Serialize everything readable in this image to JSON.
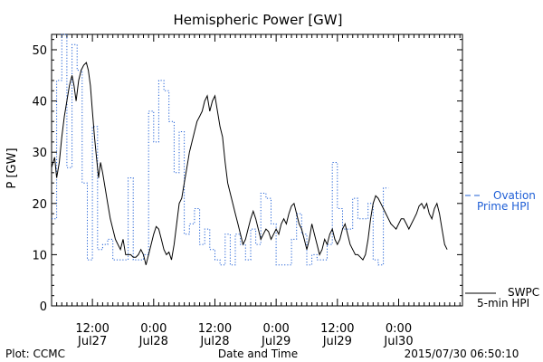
{
  "chart_data": {
    "type": "line",
    "title": "Hemispheric Power [GW]",
    "ylabel": "P [GW]",
    "xlabel": "Date and Time",
    "ylim": [
      0,
      53
    ],
    "yticks": [
      0,
      10,
      20,
      30,
      40,
      50
    ],
    "xlim_hours": [
      0,
      80.5
    ],
    "xtick_labels": [
      {
        "h": 8,
        "time": "12:00",
        "date": "Jul27"
      },
      {
        "h": 20,
        "time": "0:00",
        "date": "Jul28"
      },
      {
        "h": 32,
        "time": "12:00",
        "date": "Jul28"
      },
      {
        "h": 44,
        "time": "0:00",
        "date": "Jul29"
      },
      {
        "h": 56,
        "time": "12:00",
        "date": "Jul29"
      },
      {
        "h": 68,
        "time": "0:00",
        "date": "Jul30"
      }
    ],
    "footer_left": "Plot: CCMC",
    "footer_right": "2015/07/30 06:50:10",
    "colors": {
      "swpc": "#000000",
      "ovation": "#1f5fd6"
    },
    "series": [
      {
        "name": "SWPC 5-min HPI",
        "legend_lines": [
          "SWPC",
          "5-min HPI"
        ],
        "style": "solid",
        "color": "#000000",
        "points": [
          [
            0,
            27
          ],
          [
            0.6,
            29
          ],
          [
            1,
            25
          ],
          [
            1.5,
            28
          ],
          [
            2,
            33
          ],
          [
            2.5,
            37
          ],
          [
            3,
            40
          ],
          [
            3.5,
            43
          ],
          [
            4,
            45
          ],
          [
            4.4,
            43
          ],
          [
            4.8,
            40
          ],
          [
            5.3,
            44
          ],
          [
            5.8,
            46
          ],
          [
            6.3,
            47
          ],
          [
            6.8,
            47.5
          ],
          [
            7.2,
            46
          ],
          [
            7.6,
            43
          ],
          [
            8,
            38
          ],
          [
            8.4,
            33
          ],
          [
            8.8,
            29
          ],
          [
            9.2,
            25
          ],
          [
            9.6,
            28
          ],
          [
            10,
            26
          ],
          [
            10.5,
            23
          ],
          [
            11,
            20
          ],
          [
            11.5,
            17
          ],
          [
            12,
            15
          ],
          [
            12.5,
            13
          ],
          [
            13,
            12
          ],
          [
            13.5,
            11
          ],
          [
            14,
            13
          ],
          [
            14.5,
            10
          ],
          [
            15,
            10
          ],
          [
            15.5,
            10
          ],
          [
            16,
            9.5
          ],
          [
            16.5,
            9.5
          ],
          [
            17,
            10
          ],
          [
            17.5,
            11
          ],
          [
            18,
            10
          ],
          [
            18.5,
            8
          ],
          [
            19,
            10
          ],
          [
            19.5,
            12
          ],
          [
            20,
            14
          ],
          [
            20.5,
            15.5
          ],
          [
            21,
            15
          ],
          [
            21.5,
            13
          ],
          [
            22,
            11
          ],
          [
            22.5,
            10
          ],
          [
            23,
            10.5
          ],
          [
            23.5,
            9
          ],
          [
            24,
            12
          ],
          [
            24.5,
            16
          ],
          [
            25,
            20
          ],
          [
            25.5,
            21
          ],
          [
            26,
            24
          ],
          [
            26.5,
            27
          ],
          [
            27,
            30
          ],
          [
            27.5,
            32
          ],
          [
            28,
            34
          ],
          [
            28.5,
            36
          ],
          [
            29,
            37
          ],
          [
            29.5,
            38
          ],
          [
            30,
            40
          ],
          [
            30.5,
            41
          ],
          [
            31,
            38
          ],
          [
            31.5,
            40
          ],
          [
            32,
            41
          ],
          [
            32.5,
            38
          ],
          [
            33,
            35
          ],
          [
            33.5,
            33
          ],
          [
            34,
            28
          ],
          [
            34.5,
            24
          ],
          [
            35,
            22
          ],
          [
            35.5,
            20
          ],
          [
            36,
            18
          ],
          [
            36.5,
            16
          ],
          [
            37,
            14
          ],
          [
            37.5,
            12
          ],
          [
            38,
            13
          ],
          [
            38.5,
            15
          ],
          [
            39,
            17
          ],
          [
            39.5,
            18.5
          ],
          [
            40,
            17
          ],
          [
            40.5,
            15
          ],
          [
            41,
            13
          ],
          [
            41.5,
            14
          ],
          [
            42,
            15
          ],
          [
            42.5,
            14.5
          ],
          [
            43,
            13
          ],
          [
            43.5,
            14
          ],
          [
            44,
            15
          ],
          [
            44.5,
            14
          ],
          [
            45,
            16
          ],
          [
            45.5,
            17
          ],
          [
            46,
            16
          ],
          [
            46.5,
            18
          ],
          [
            47,
            19.5
          ],
          [
            47.5,
            20
          ],
          [
            48,
            18
          ],
          [
            48.5,
            16
          ],
          [
            49,
            15
          ],
          [
            49.5,
            13
          ],
          [
            50,
            11
          ],
          [
            50.5,
            13
          ],
          [
            51,
            16
          ],
          [
            51.5,
            14
          ],
          [
            52,
            12
          ],
          [
            52.5,
            10
          ],
          [
            53,
            11
          ],
          [
            53.5,
            13
          ],
          [
            54,
            12
          ],
          [
            54.5,
            14
          ],
          [
            55,
            15
          ],
          [
            55.5,
            13
          ],
          [
            56,
            12
          ],
          [
            56.5,
            13
          ],
          [
            57,
            15
          ],
          [
            57.5,
            16
          ],
          [
            58,
            14
          ],
          [
            58.5,
            12
          ],
          [
            59,
            11
          ],
          [
            59.5,
            10
          ],
          [
            60,
            10
          ],
          [
            60.5,
            9.5
          ],
          [
            61,
            9
          ],
          [
            61.5,
            10
          ],
          [
            62,
            13
          ],
          [
            62.5,
            17
          ],
          [
            63,
            20
          ],
          [
            63.5,
            21.5
          ],
          [
            64,
            21
          ],
          [
            64.5,
            20
          ],
          [
            65,
            19
          ],
          [
            65.5,
            18
          ],
          [
            66,
            17
          ],
          [
            66.5,
            16
          ],
          [
            67,
            15.5
          ],
          [
            67.5,
            15
          ],
          [
            68,
            16
          ],
          [
            68.5,
            17
          ],
          [
            69,
            17
          ],
          [
            69.5,
            16
          ],
          [
            70,
            15
          ],
          [
            70.5,
            16
          ],
          [
            71,
            17
          ],
          [
            71.5,
            18
          ],
          [
            72,
            19.5
          ],
          [
            72.5,
            20
          ],
          [
            73,
            19
          ],
          [
            73.5,
            20
          ],
          [
            74,
            18
          ],
          [
            74.5,
            17
          ],
          [
            75,
            19
          ],
          [
            75.5,
            20
          ],
          [
            76,
            18
          ],
          [
            76.5,
            15
          ],
          [
            77,
            12
          ],
          [
            77.5,
            11
          ]
        ]
      },
      {
        "name": "Ovation Prime HPI",
        "legend_lines": [
          "Ovation",
          "Prime HPI"
        ],
        "style": "dotted-step",
        "color": "#1f5fd6",
        "steps": [
          [
            0,
            17
          ],
          [
            1,
            44
          ],
          [
            2,
            53
          ],
          [
            3,
            27
          ],
          [
            4,
            51
          ],
          [
            5,
            46
          ],
          [
            6,
            24
          ],
          [
            7,
            9
          ],
          [
            8,
            35
          ],
          [
            9,
            11
          ],
          [
            10,
            12
          ],
          [
            11,
            13
          ],
          [
            12,
            9
          ],
          [
            13,
            9
          ],
          [
            14,
            9
          ],
          [
            15,
            25
          ],
          [
            16,
            9
          ],
          [
            17,
            9
          ],
          [
            18,
            10
          ],
          [
            19,
            38
          ],
          [
            20,
            32
          ],
          [
            21,
            44
          ],
          [
            22,
            42
          ],
          [
            23,
            36
          ],
          [
            24,
            26
          ],
          [
            25,
            34
          ],
          [
            26,
            14
          ],
          [
            27,
            16
          ],
          [
            28,
            19
          ],
          [
            29,
            12
          ],
          [
            30,
            15
          ],
          [
            31,
            11
          ],
          [
            32,
            9
          ],
          [
            33,
            8
          ],
          [
            34,
            14
          ],
          [
            35,
            8
          ],
          [
            36,
            14
          ],
          [
            37,
            12
          ],
          [
            38,
            9
          ],
          [
            39,
            15
          ],
          [
            40,
            12
          ],
          [
            41,
            22
          ],
          [
            42,
            21
          ],
          [
            43,
            16
          ],
          [
            44,
            8
          ],
          [
            45,
            8
          ],
          [
            46,
            8
          ],
          [
            47,
            13
          ],
          [
            48,
            18
          ],
          [
            49,
            14
          ],
          [
            50,
            8
          ],
          [
            51,
            10
          ],
          [
            52,
            9
          ],
          [
            53,
            9
          ],
          [
            54,
            12
          ],
          [
            55,
            28
          ],
          [
            56,
            19
          ],
          [
            57,
            15
          ],
          [
            58,
            15
          ],
          [
            59,
            21
          ],
          [
            60,
            17
          ],
          [
            61,
            17
          ],
          [
            62,
            20
          ],
          [
            63,
            9
          ],
          [
            64,
            8
          ],
          [
            65,
            23
          ]
        ],
        "step_hours": 1
      }
    ]
  }
}
